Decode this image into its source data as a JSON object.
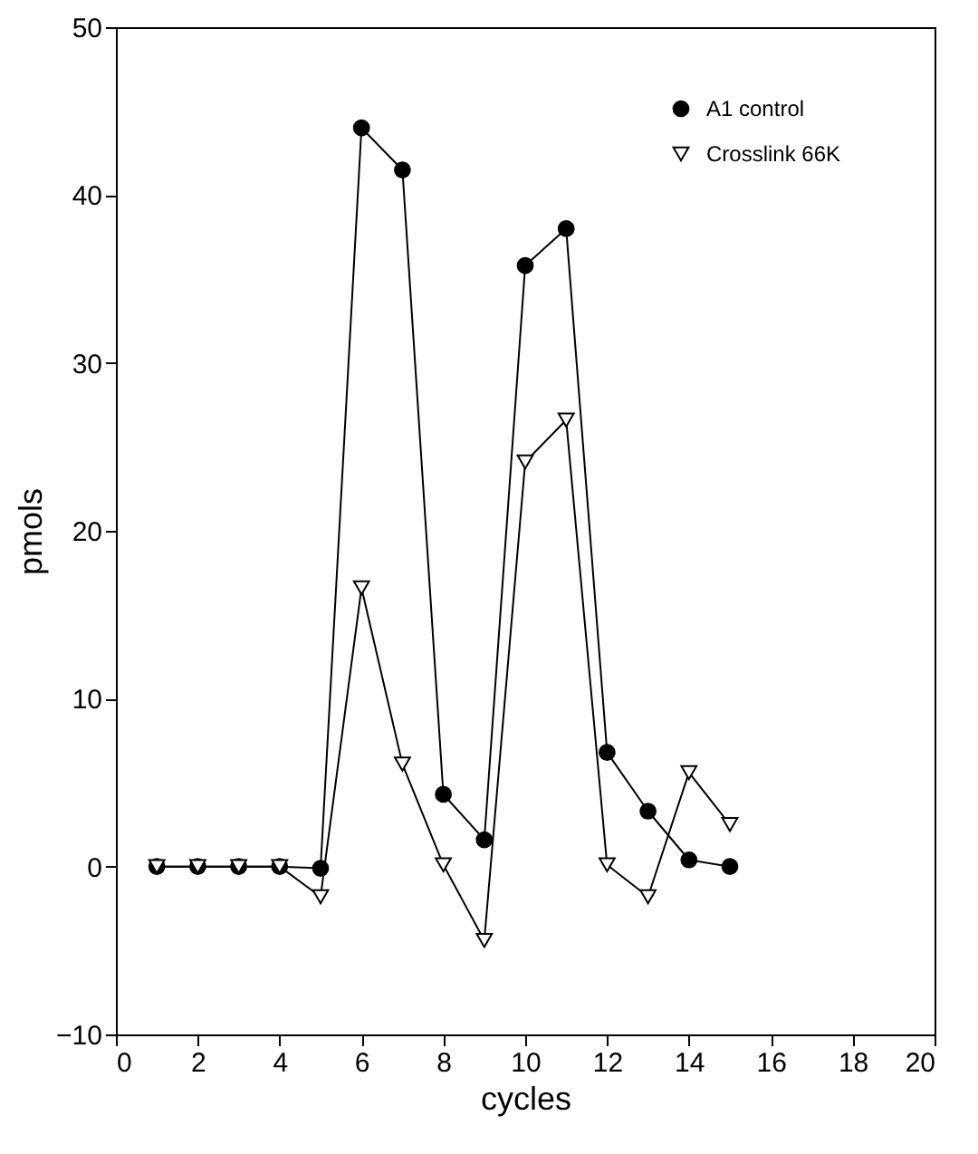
{
  "chart_data": {
    "type": "line",
    "xlabel": "cycles",
    "ylabel": "pmols",
    "x": [
      1,
      2,
      3,
      4,
      5,
      6,
      7,
      8,
      9,
      10,
      11,
      12,
      13,
      14,
      15
    ],
    "series": [
      {
        "name": "A1 control",
        "color": "#000000",
        "marker": "circle",
        "values": [
          0,
          0,
          0,
          0,
          -0.1,
          44,
          41.5,
          4.3,
          1.6,
          35.8,
          38,
          6.8,
          3.3,
          0.4,
          0
        ]
      },
      {
        "name": "Crosslink 66K",
        "color": "#000000",
        "marker": "triangle",
        "values": [
          0,
          0,
          0,
          0,
          -1.8,
          16.6,
          6.1,
          0.1,
          -4.4,
          24.1,
          26.6,
          0.1,
          -1.8,
          5.6,
          2.5
        ]
      }
    ],
    "xlim": [
      0,
      20
    ],
    "xticks": [
      0,
      2,
      4,
      6,
      8,
      10,
      12,
      14,
      16,
      18,
      20
    ],
    "ylim": [
      -10,
      50
    ],
    "yticks": [
      -10,
      0,
      10,
      20,
      30,
      40,
      50
    ],
    "grid": false,
    "legend": "top right",
    "line_style": "solid"
  }
}
